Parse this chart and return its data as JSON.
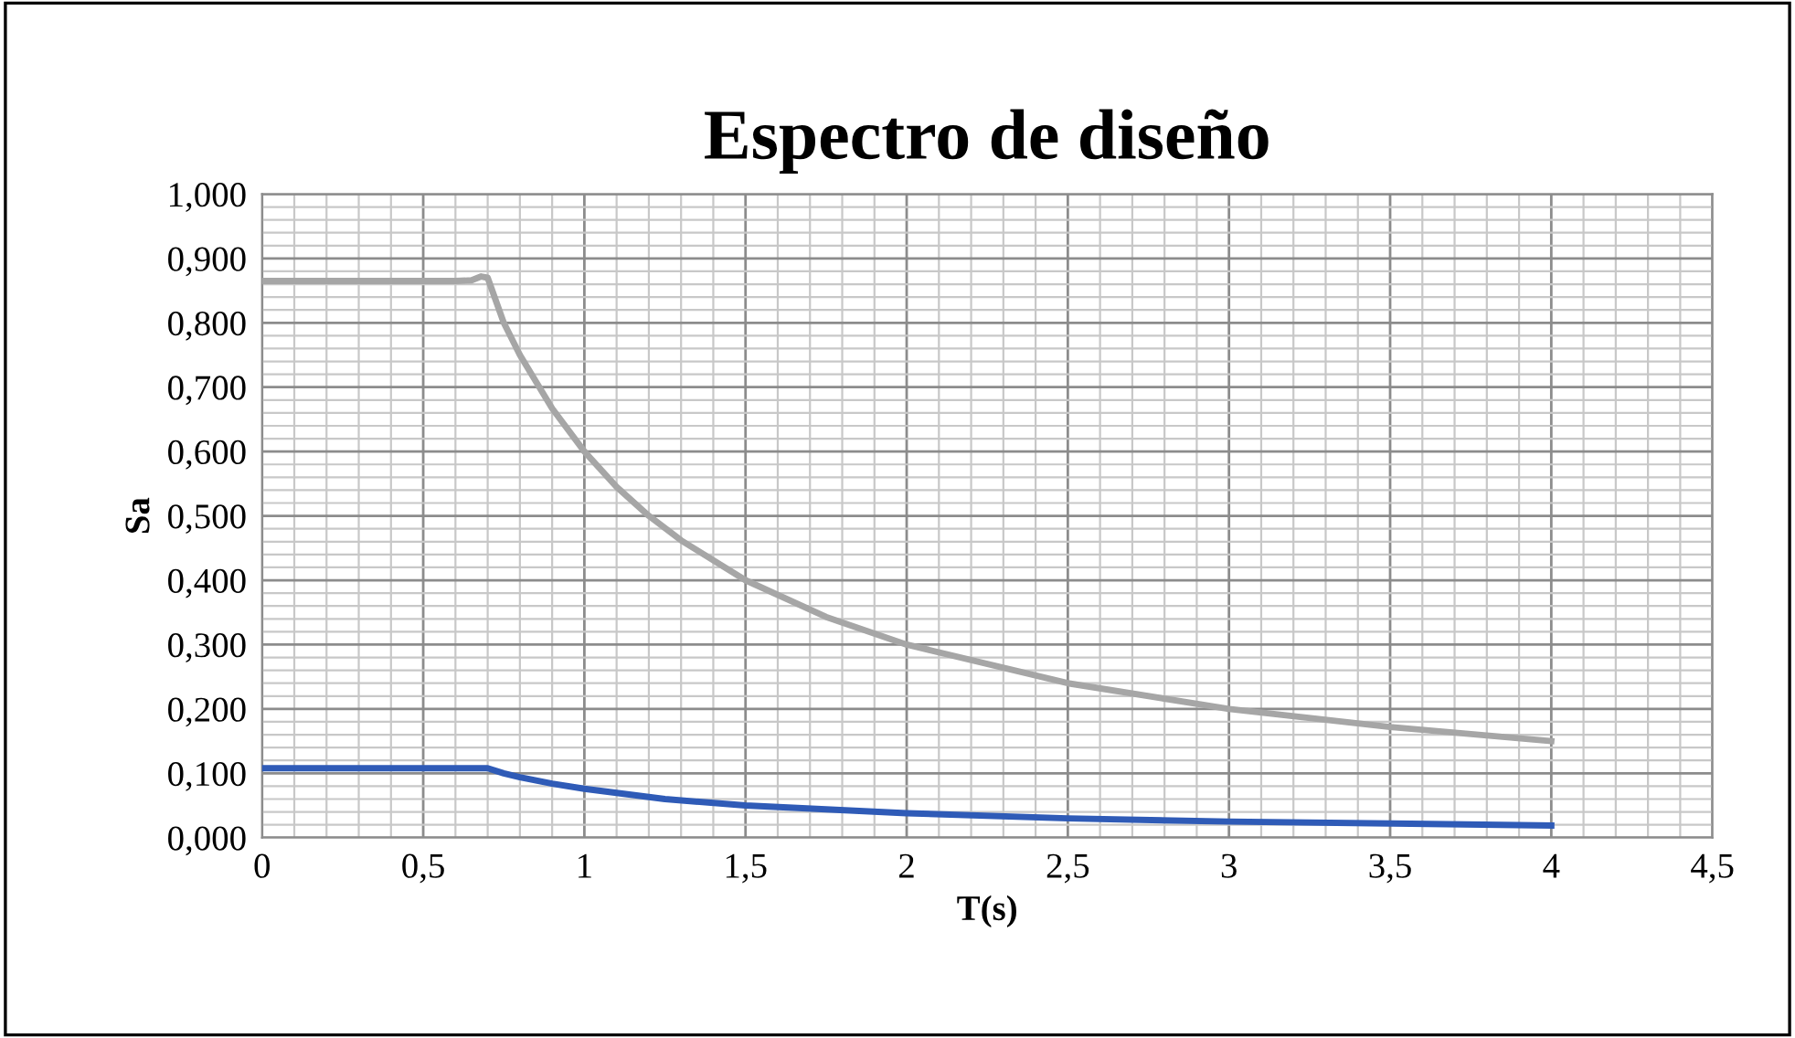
{
  "chart_data": {
    "type": "line",
    "title": "Espectro de diseño",
    "xlabel": "T(s)",
    "ylabel": "Sa",
    "xlim": [
      0,
      4.5
    ],
    "ylim": [
      0,
      1.0
    ],
    "xticks": [
      0,
      {
        "value": 0.5,
        "label": "0,5"
      },
      1,
      {
        "value": 1.5,
        "label": "1,5"
      },
      2,
      {
        "value": 2.5,
        "label": "2,5"
      },
      3,
      {
        "value": 3.5,
        "label": "3,5"
      },
      4,
      {
        "value": 4.5,
        "label": "4,5"
      }
    ],
    "yticks": [
      {
        "value": 0,
        "label": "0,000"
      },
      {
        "value": 0.1,
        "label": "0,100"
      },
      {
        "value": 0.2,
        "label": "0,200"
      },
      {
        "value": 0.3,
        "label": "0,300"
      },
      {
        "value": 0.4,
        "label": "0,400"
      },
      {
        "value": 0.5,
        "label": "0,500"
      },
      {
        "value": 0.6,
        "label": "0,600"
      },
      {
        "value": 0.7,
        "label": "0,700"
      },
      {
        "value": 0.8,
        "label": "0,800"
      },
      {
        "value": 0.9,
        "label": "0,900"
      },
      {
        "value": 1.0,
        "label": "1,000"
      }
    ],
    "grid": true,
    "marker": "none",
    "line_style": "solid",
    "series": [
      {
        "color": "#a6a6a6",
        "x": [
          0,
          0.6,
          0.65,
          0.68,
          0.7,
          0.75,
          0.8,
          0.9,
          1.0,
          1.1,
          1.2,
          1.3,
          1.5,
          1.75,
          2.0,
          2.5,
          3.0,
          3.5,
          4.0
        ],
        "values": [
          0.865,
          0.865,
          0.866,
          0.872,
          0.87,
          0.8,
          0.75,
          0.667,
          0.6,
          0.545,
          0.5,
          0.462,
          0.4,
          0.343,
          0.3,
          0.24,
          0.2,
          0.172,
          0.15
        ]
      },
      {
        "color": "#2f5bb7",
        "x": [
          0,
          0.7,
          0.75,
          0.8,
          0.9,
          1.0,
          1.25,
          1.5,
          2.0,
          2.5,
          3.0,
          3.5,
          4.0
        ],
        "values": [
          0.108,
          0.108,
          0.1,
          0.094,
          0.084,
          0.076,
          0.06,
          0.05,
          0.038,
          0.03,
          0.025,
          0.022,
          0.019
        ]
      }
    ]
  }
}
